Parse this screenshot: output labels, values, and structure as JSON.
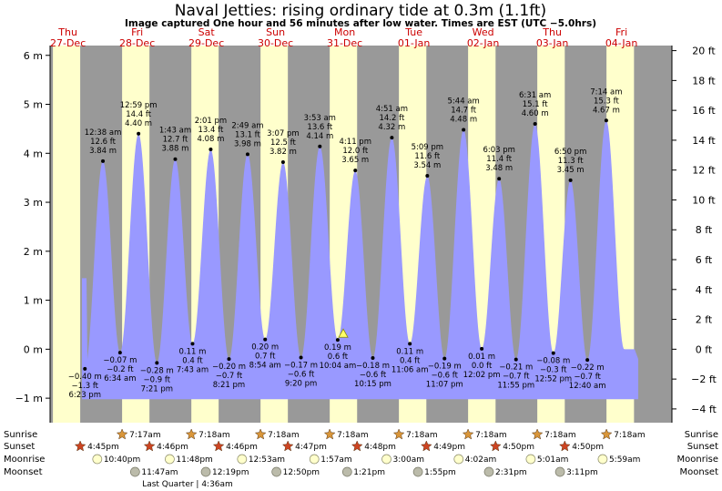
{
  "chart_data": {
    "type": "area",
    "title": "Naval Jetties: rising  ordinary tide at 0.3m (1.1ft)",
    "subtitle": "Image captured One hour and 56 minutes after low water. Times are EST (UTC −5.0hrs)",
    "ylabel_left": "",
    "ylabel_right": "",
    "ylim_m": [
      -1.5,
      6.2
    ],
    "yticks_left": [
      "−1 m",
      "0 m",
      "1 m",
      "2 m",
      "3 m",
      "4 m",
      "5 m",
      "6 m"
    ],
    "yticks_left_values": [
      -1,
      0,
      1,
      2,
      3,
      4,
      5,
      6
    ],
    "yticks_right": [
      "−4 ft",
      "−2 ft",
      "0 ft",
      "2 ft",
      "4 ft",
      "6 ft",
      "8 ft",
      "10 ft",
      "12 ft",
      "14 ft",
      "16 ft",
      "18 ft",
      "20 ft"
    ],
    "yticks_right_values_ft": [
      -4,
      -2,
      0,
      2,
      4,
      6,
      8,
      10,
      12,
      14,
      16,
      18,
      20
    ],
    "days": [
      {
        "dow": "Thu",
        "date": "27-Dec"
      },
      {
        "dow": "Fri",
        "date": "28-Dec"
      },
      {
        "dow": "Sat",
        "date": "29-Dec"
      },
      {
        "dow": "Sun",
        "date": "30-Dec"
      },
      {
        "dow": "Mon",
        "date": "31-Dec"
      },
      {
        "dow": "Tue",
        "date": "01-Jan"
      },
      {
        "dow": "Wed",
        "date": "02-Jan"
      },
      {
        "dow": "Thu",
        "date": "03-Jan"
      },
      {
        "dow": "Fri",
        "date": "04-Jan"
      }
    ],
    "x_range_hours": [
      6.3,
      222.0
    ],
    "daylight": [
      {
        "sunrise_h": 7.28,
        "sunset_h": 16.75
      },
      {
        "sunrise_h": 31.28,
        "sunset_h": 40.77
      },
      {
        "sunrise_h": 55.3,
        "sunset_h": 64.77
      },
      {
        "sunrise_h": 79.3,
        "sunset_h": 88.78
      },
      {
        "sunrise_h": 103.3,
        "sunset_h": 112.8
      },
      {
        "sunrise_h": 127.3,
        "sunset_h": 136.82
      },
      {
        "sunrise_h": 151.3,
        "sunset_h": 160.83
      },
      {
        "sunrise_h": 175.3,
        "sunset_h": 184.83
      },
      {
        "sunrise_h": 199.3,
        "sunset_h": 208.85
      }
    ],
    "tides": [
      {
        "t": 18.38,
        "h": -0.4,
        "time": "6:23 pm",
        "ft": "−1.3 ft",
        "m": "−0.40 m",
        "type": "low"
      },
      {
        "t": 24.63,
        "h": 3.84,
        "time": "12:38 am",
        "ft": "12.6 ft",
        "m": "3.84 m",
        "type": "high"
      },
      {
        "t": 30.57,
        "h": -0.07,
        "time": "6:34 am",
        "ft": "−0.2 ft",
        "m": "−0.07 m",
        "type": "low"
      },
      {
        "t": 36.98,
        "h": 4.4,
        "time": "12:59 pm",
        "ft": "14.4 ft",
        "m": "4.40 m",
        "type": "high"
      },
      {
        "t": 43.35,
        "h": -0.28,
        "time": "7:21 pm",
        "ft": "−0.9 ft",
        "m": "−0.28 m",
        "type": "low"
      },
      {
        "t": 49.72,
        "h": 3.88,
        "time": "1:43 am",
        "ft": "12.7 ft",
        "m": "3.88 m",
        "type": "high"
      },
      {
        "t": 55.72,
        "h": 0.11,
        "time": "7:43 am",
        "ft": "0.4 ft",
        "m": "0.11 m",
        "type": "low"
      },
      {
        "t": 62.02,
        "h": 4.08,
        "time": "2:01 pm",
        "ft": "13.4 ft",
        "m": "4.08 m",
        "type": "high"
      },
      {
        "t": 68.35,
        "h": -0.2,
        "time": "8:21 pm",
        "ft": "−0.7 ft",
        "m": "−0.20 m",
        "type": "low"
      },
      {
        "t": 74.82,
        "h": 3.98,
        "time": "2:49 am",
        "ft": "13.1 ft",
        "m": "3.98 m",
        "type": "high"
      },
      {
        "t": 80.9,
        "h": 0.2,
        "time": "8:54 am",
        "ft": "0.7 ft",
        "m": "0.20 m",
        "type": "low"
      },
      {
        "t": 87.12,
        "h": 3.82,
        "time": "3:07 pm",
        "ft": "12.5 ft",
        "m": "3.82 m",
        "type": "high"
      },
      {
        "t": 93.33,
        "h": -0.17,
        "time": "9:20 pm",
        "ft": "−0.6 ft",
        "m": "−0.17 m",
        "type": "low"
      },
      {
        "t": 99.88,
        "h": 4.14,
        "time": "3:53 am",
        "ft": "13.6 ft",
        "m": "4.14 m",
        "type": "high"
      },
      {
        "t": 106.07,
        "h": 0.19,
        "time": "10:04 am",
        "ft": "0.6 ft",
        "m": "0.19 m",
        "type": "low"
      },
      {
        "t": 112.18,
        "h": 3.65,
        "time": "4:11 pm",
        "ft": "12.0 ft",
        "m": "3.65 m",
        "type": "high"
      },
      {
        "t": 118.25,
        "h": -0.18,
        "time": "10:15 pm",
        "ft": "−0.6 ft",
        "m": "−0.18 m",
        "type": "low"
      },
      {
        "t": 124.85,
        "h": 4.32,
        "time": "4:51 am",
        "ft": "14.2 ft",
        "m": "4.32 m",
        "type": "high"
      },
      {
        "t": 131.1,
        "h": 0.11,
        "time": "11:06 am",
        "ft": "0.4 ft",
        "m": "0.11 m",
        "type": "low"
      },
      {
        "t": 137.15,
        "h": 3.54,
        "time": "5:09 pm",
        "ft": "11.6 ft",
        "m": "3.54 m",
        "type": "high"
      },
      {
        "t": 143.12,
        "h": -0.19,
        "time": "11:07 pm",
        "ft": "−0.6 ft",
        "m": "−0.19 m",
        "type": "low"
      },
      {
        "t": 149.73,
        "h": 4.48,
        "time": "5:44 am",
        "ft": "14.7 ft",
        "m": "4.48 m",
        "type": "high"
      },
      {
        "t": 156.03,
        "h": 0.01,
        "time": "12:02 pm",
        "ft": "0.0 ft",
        "m": "0.01 m",
        "type": "low"
      },
      {
        "t": 162.05,
        "h": 3.48,
        "time": "6:03 pm",
        "ft": "11.4 ft",
        "m": "3.48 m",
        "type": "high"
      },
      {
        "t": 167.92,
        "h": -0.21,
        "time": "11:55 pm",
        "ft": "−0.7 ft",
        "m": "−0.21 m",
        "type": "low"
      },
      {
        "t": 174.52,
        "h": 4.6,
        "time": "6:31 am",
        "ft": "15.1 ft",
        "m": "4.60 m",
        "type": "high"
      },
      {
        "t": 180.87,
        "h": -0.08,
        "time": "12:52 pm",
        "ft": "−0.3 ft",
        "m": "−0.08 m",
        "type": "low"
      },
      {
        "t": 186.83,
        "h": 3.45,
        "time": "6:50 pm",
        "ft": "11.3 ft",
        "m": "3.45 m",
        "type": "high"
      },
      {
        "t": 192.67,
        "h": -0.22,
        "time": "12:40 am",
        "ft": "−0.7 ft",
        "m": "−0.22 m",
        "type": "low"
      },
      {
        "t": 199.23,
        "h": 4.67,
        "time": "7:14 am",
        "ft": "15.3 ft",
        "m": "4.67 m",
        "type": "high"
      }
    ],
    "current_marker": {
      "t": 108.0,
      "h": 0.3
    },
    "rows": {
      "labels": [
        "Sunrise",
        "Sunset",
        "Moonrise",
        "Moonset"
      ],
      "sunrise": [
        {
          "t": 31.28,
          "label": "7:17am"
        },
        {
          "t": 55.3,
          "label": "7:18am"
        },
        {
          "t": 79.3,
          "label": "7:18am"
        },
        {
          "t": 103.3,
          "label": "7:18am"
        },
        {
          "t": 127.3,
          "label": "7:18am"
        },
        {
          "t": 151.3,
          "label": "7:18am"
        },
        {
          "t": 175.3,
          "label": "7:18am"
        },
        {
          "t": 199.3,
          "label": "7:18am"
        }
      ],
      "sunset": [
        {
          "t": 16.75,
          "label": "4:45pm"
        },
        {
          "t": 40.77,
          "label": "4:46pm"
        },
        {
          "t": 64.77,
          "label": "4:46pm"
        },
        {
          "t": 88.78,
          "label": "4:47pm"
        },
        {
          "t": 112.8,
          "label": "4:48pm"
        },
        {
          "t": 136.82,
          "label": "4:49pm"
        },
        {
          "t": 160.83,
          "label": "4:50pm"
        },
        {
          "t": 184.83,
          "label": "4:50pm"
        }
      ],
      "moonrise": [
        {
          "t": 22.67,
          "label": "10:40pm"
        },
        {
          "t": 47.8,
          "label": "11:48pm"
        },
        {
          "t": 72.88,
          "label": "12:53am"
        },
        {
          "t": 97.95,
          "label": "1:57am"
        },
        {
          "t": 123.0,
          "label": "3:00am"
        },
        {
          "t": 148.03,
          "label": "4:02am"
        },
        {
          "t": 173.02,
          "label": "5:01am"
        },
        {
          "t": 197.98,
          "label": "5:59am"
        }
      ],
      "moonset": [
        {
          "t": 35.78,
          "label": "11:47am"
        },
        {
          "t": 60.32,
          "label": "12:19pm"
        },
        {
          "t": 84.83,
          "label": "12:50pm"
        },
        {
          "t": 109.35,
          "label": "1:21pm"
        },
        {
          "t": 133.92,
          "label": "1:55pm"
        },
        {
          "t": 158.52,
          "label": "2:31pm"
        },
        {
          "t": 183.18,
          "label": "3:11pm"
        }
      ],
      "moon_phase": "Last Quarter | 4:36am"
    },
    "colors": {
      "day_bg": "#ffffcc",
      "night_bg": "#999999",
      "water": "#9999ff",
      "axis_bg": "#ffffff",
      "day_text": "#cc0000",
      "sunrise_star": "#d9963a",
      "sunset_star": "#cc4422",
      "moonrise_fill": "#ffffcc",
      "moonset_fill": "#bbbbaa"
    }
  }
}
